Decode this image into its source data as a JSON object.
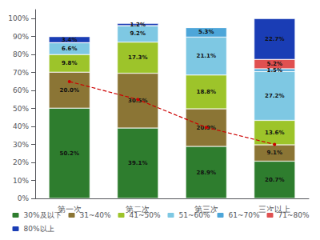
{
  "chart_data": {
    "type": "bar",
    "stacked": true,
    "data_labels": true,
    "legend": "bottom",
    "grid": false,
    "categories": [
      "第一次",
      "第二次",
      "第三次",
      "三次以上"
    ],
    "series": [
      {
        "name": "30%及以下",
        "color": "#2e7d2e",
        "values": [
          50.2,
          39.1,
          28.9,
          20.7
        ],
        "value_labels": [
          "50.2%",
          "39.1%",
          "28.9%",
          "20.7%"
        ]
      },
      {
        "name": "31~40%",
        "color": "#8b7535",
        "values": [
          20.0,
          30.5,
          20.9,
          9.1
        ],
        "value_labels": [
          "20.0%",
          "30.5%",
          "20.9%",
          "9.1%"
        ]
      },
      {
        "name": "41~50%",
        "color": "#9dc42a",
        "values": [
          9.8,
          17.3,
          18.8,
          13.6
        ],
        "value_labels": [
          "9.8%",
          "17.3%",
          "18.8%",
          "13.6%"
        ]
      },
      {
        "name": "51~60%",
        "color": "#7ec8e3",
        "values": [
          6.6,
          9.2,
          21.1,
          27.2
        ],
        "value_labels": [
          "6.6%",
          "9.2%",
          "21.1%",
          "27.2%"
        ]
      },
      {
        "name": "61~70%",
        "color": "#4da6d9",
        "values": [
          0.0,
          0.0,
          5.3,
          1.5
        ],
        "value_labels": [
          null,
          null,
          "5.3%",
          "1.5%"
        ]
      },
      {
        "name": "71~80%",
        "color": "#e05050",
        "values": [
          0.0,
          0.0,
          0.0,
          5.2
        ],
        "value_labels": [
          null,
          null,
          null,
          "5.2%"
        ]
      },
      {
        "name": "80%以上",
        "color": "#1a3db5",
        "values": [
          3.4,
          1.2,
          0.0,
          22.7
        ],
        "value_labels": [
          "3.4%",
          "1.2%",
          null,
          "22.7%"
        ]
      },
      {
        "type": "line",
        "color": "#cc0000",
        "line_style": "dashed",
        "marker": "circle",
        "values": [
          65.0,
          55.0,
          39.5,
          30.0
        ]
      }
    ],
    "ylim": [
      0,
      105
    ],
    "yticks": [
      {
        "value": 0,
        "label": "0%"
      },
      {
        "value": 10,
        "label": "10%"
      },
      {
        "value": 20,
        "label": "20%"
      },
      {
        "value": 30,
        "label": "30%"
      },
      {
        "value": 40,
        "label": "40%"
      },
      {
        "value": 50,
        "label": "50%"
      },
      {
        "value": 60,
        "label": "60%"
      },
      {
        "value": 70,
        "label": "70%"
      },
      {
        "value": 80,
        "label": "80%"
      },
      {
        "value": 90,
        "label": "90%"
      },
      {
        "value": 100,
        "label": "100%"
      }
    ]
  }
}
